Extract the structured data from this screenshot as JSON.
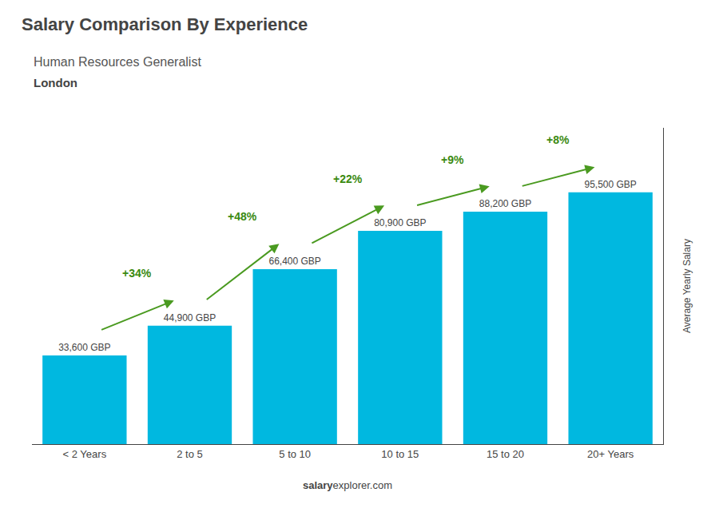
{
  "chart_data": {
    "type": "bar",
    "title": "Salary Comparison By Experience",
    "subtitle": "Human Resources Generalist",
    "location": "London",
    "categories": [
      "< 2 Years",
      "2 to 5",
      "5 to 10",
      "10 to 15",
      "15 to 20",
      "20+ Years"
    ],
    "values": [
      33600,
      44900,
      66400,
      80900,
      88200,
      95500
    ],
    "value_labels": [
      "33,600 GBP",
      "44,900 GBP",
      "66,400 GBP",
      "80,900 GBP",
      "88,200 GBP",
      "95,500 GBP"
    ],
    "data_labels": true,
    "color": "#00b8e0",
    "annotations": [
      {
        "text": "+34%",
        "from": "< 2 Years",
        "to": "2 to 5"
      },
      {
        "text": "+48%",
        "from": "2 to 5",
        "to": "5 to 10"
      },
      {
        "text": "+22%",
        "from": "5 to 10",
        "to": "10 to 15"
      },
      {
        "text": "+9%",
        "from": "10 to 15",
        "to": "15 to 20"
      },
      {
        "text": "+8%",
        "from": "15 to 20",
        "to": "20+ Years"
      }
    ],
    "ylabel": "Average Yearly Salary",
    "ylim": [
      0,
      120000
    ],
    "tick_labels": "x",
    "grid": false,
    "footer": [
      "salary",
      "explorer.com"
    ]
  }
}
